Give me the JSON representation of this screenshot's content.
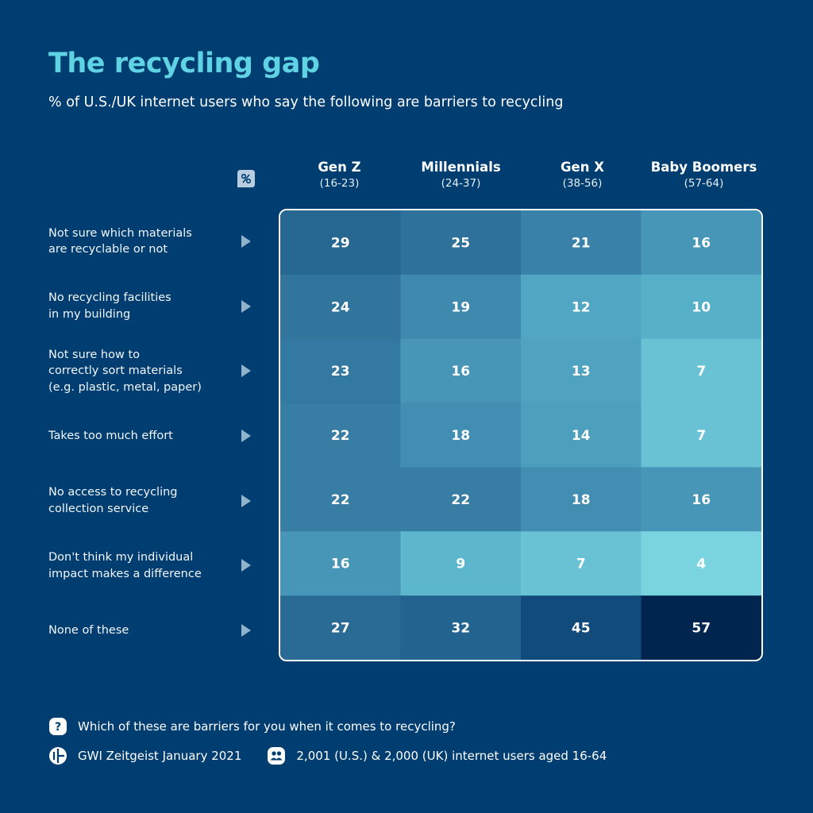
{
  "chart_data": {
    "type": "heatmap",
    "title": "The recycling gap",
    "subtitle": "% of U.S./UK internet users who say the following are barriers to recycling",
    "columns": [
      {
        "name": "Gen Z",
        "range": "(16-23)"
      },
      {
        "name": "Millennials",
        "range": "(24-37)"
      },
      {
        "name": "Gen X",
        "range": "(38-56)"
      },
      {
        "name": "Baby Boomers",
        "range": "(57-64)"
      }
    ],
    "rows": [
      {
        "label": [
          "Not sure which materials",
          "are recyclable or not"
        ],
        "values": [
          29,
          25,
          21,
          16
        ]
      },
      {
        "label": [
          "No recycling facilities",
          "in my building"
        ],
        "values": [
          24,
          19,
          12,
          10
        ]
      },
      {
        "label": [
          "Not sure how to",
          "correctly sort materials",
          "(e.g. plastic, metal, paper)"
        ],
        "values": [
          23,
          16,
          13,
          7
        ]
      },
      {
        "label": [
          "Takes too much effort"
        ],
        "values": [
          22,
          18,
          14,
          7
        ]
      },
      {
        "label": [
          "No access to recycling",
          "collection service"
        ],
        "values": [
          22,
          22,
          18,
          16
        ]
      },
      {
        "label": [
          "Don't think my individual",
          "impact makes a difference"
        ],
        "values": [
          16,
          9,
          7,
          4
        ]
      },
      {
        "label": [
          "None of these"
        ],
        "values": [
          27,
          32,
          45,
          57
        ]
      }
    ],
    "color_scale": {
      "low": "#7ad4e0",
      "high": "#00254f"
    }
  },
  "footer": {
    "question": "Which of these are barriers for you when it comes to recycling?",
    "source": "GWI Zeitgeist January 2021",
    "sample": "2,001 (U.S.) & 2,000 (UK) internet users aged 16-64"
  },
  "icons": {
    "filter": "filter-icon",
    "question": "question-icon",
    "source": "gwi-logo-icon",
    "sample": "users-icon"
  },
  "colors": {
    "background": "#003d70",
    "title": "#5fd3e4",
    "arrow": "#8fb3cc"
  }
}
